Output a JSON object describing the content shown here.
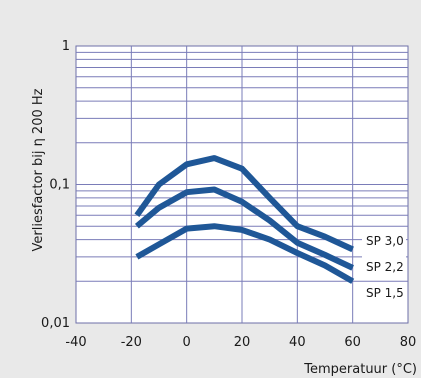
{
  "chart_data": {
    "type": "line",
    "xlabel": "Temperatuur (°C)",
    "ylabel": "Verliesfactor bij η 200 Hz",
    "xlim": [
      -40,
      80
    ],
    "ylim": [
      0.01,
      1
    ],
    "yscale": "log",
    "grid": true,
    "x_ticks": [
      -40,
      -20,
      0,
      20,
      40,
      60,
      80
    ],
    "x_tick_labels": [
      "-40",
      "-20",
      "0",
      "20",
      "40",
      "60",
      "80"
    ],
    "y_ticks": [
      0.01,
      0.1,
      1
    ],
    "y_tick_labels": [
      "0,01",
      "0,1",
      "1"
    ],
    "series": [
      {
        "name": "SP 3,0",
        "color": "#1f5797",
        "x": [
          -18,
          -10,
          0,
          10,
          20,
          30,
          40,
          50,
          60
        ],
        "y": [
          0.06,
          0.1,
          0.14,
          0.155,
          0.13,
          0.08,
          0.05,
          0.042,
          0.034
        ]
      },
      {
        "name": "SP 2,2",
        "color": "#1f5797",
        "x": [
          -18,
          -10,
          0,
          10,
          20,
          30,
          40,
          50,
          60
        ],
        "y": [
          0.05,
          0.068,
          0.088,
          0.092,
          0.075,
          0.055,
          0.038,
          0.031,
          0.025
        ]
      },
      {
        "name": "SP 1,5",
        "color": "#1f5797",
        "x": [
          -18,
          -10,
          0,
          10,
          20,
          30,
          40,
          50,
          60
        ],
        "y": [
          0.03,
          0.037,
          0.048,
          0.05,
          0.047,
          0.04,
          0.032,
          0.026,
          0.02
        ]
      }
    ]
  }
}
